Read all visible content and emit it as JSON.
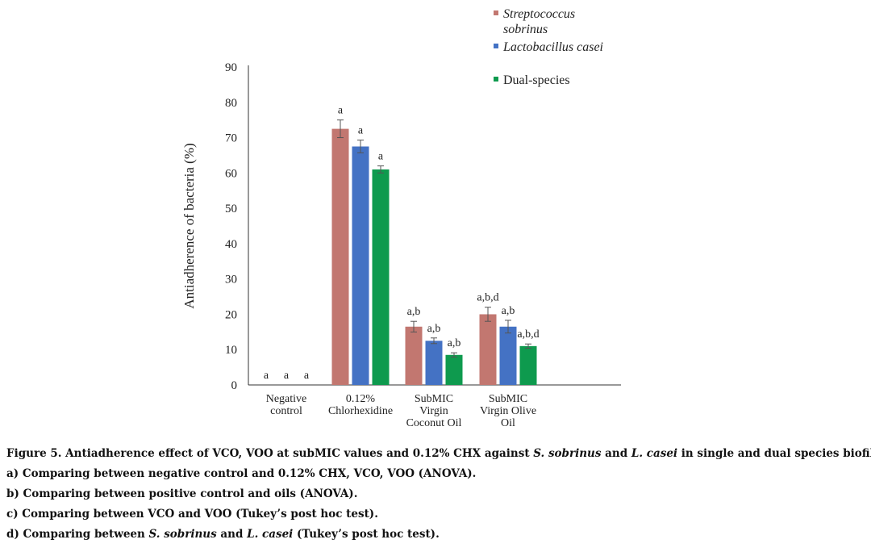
{
  "chart_data": {
    "type": "bar",
    "ylabel": "Antiadherence of bacteria (%)",
    "xlabel": "",
    "ylim": [
      0,
      90
    ],
    "yticks": [
      0,
      10,
      20,
      30,
      40,
      50,
      60,
      70,
      80,
      90
    ],
    "grid": false,
    "legend_position": "top-right",
    "categories": [
      [
        "Negative",
        "control"
      ],
      [
        "0.12%",
        "Chlorhexidine"
      ],
      [
        "SubMIC",
        "Virgin",
        "Coconut Oil"
      ],
      [
        "SubMIC",
        "Virgin Olive",
        "Oil"
      ]
    ],
    "series": [
      {
        "name": [
          "Streptococcus",
          "sobrinus"
        ],
        "color": "#c27770",
        "values": [
          0,
          72.5,
          16.5,
          20
        ],
        "errors": [
          0,
          2.5,
          1.5,
          2
        ],
        "annotations": [
          "a",
          "a",
          "a,b",
          "a,b,d"
        ]
      },
      {
        "name": [
          "Lactobacillus casei"
        ],
        "color": "#4472c4",
        "values": [
          0,
          67.5,
          12.5,
          16.5
        ],
        "errors": [
          0,
          1.8,
          0.8,
          1.8
        ],
        "annotations": [
          "a",
          "a",
          "a,b",
          "a,b"
        ]
      },
      {
        "name": [
          "Dual-species"
        ],
        "color": "#0e9a4e",
        "values": [
          0,
          61,
          8.5,
          11
        ],
        "errors": [
          0,
          1,
          0.6,
          0.6
        ],
        "annotations": [
          "a",
          "a",
          "a,b",
          "a,b,d"
        ]
      }
    ]
  },
  "caption": {
    "line1": {
      "prefix": "Figure 5.  Antiadherence effect of VCO, VOO at subMIC values and 0.12% CHX against ",
      "species1": "S. sobrinus",
      "and": " and ",
      "species2": "L. casei",
      "suffix": " in single and dual species biofilms."
    },
    "line2": "a) Comparing between negative control and 0.12% CHX, VCO, VOO (ANOVA).",
    "line3": "b) Comparing between positive control and oils (ANOVA).",
    "line4": "c) Comparing between VCO and VOO (Tukey’s post hoc test).",
    "line5": {
      "prefix": "d) Comparing between ",
      "species1": "S. sobrinus",
      "and": " and ",
      "species2": "L. casei",
      "suffix": " (Tukey’s post hoc test)."
    }
  }
}
